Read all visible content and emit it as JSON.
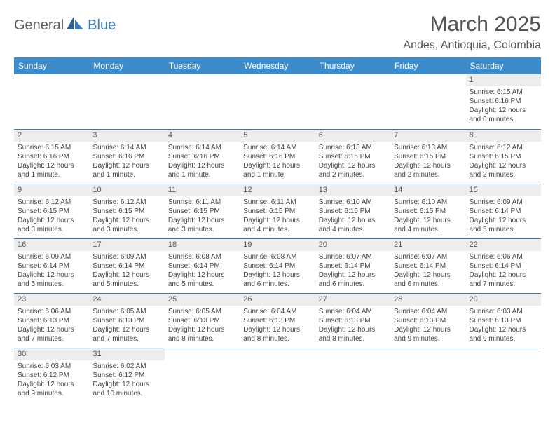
{
  "logo": {
    "part1": "General",
    "part2": "Blue"
  },
  "title": "March 2025",
  "location": "Andes, Antioquia, Colombia",
  "weekdays": [
    "Sunday",
    "Monday",
    "Tuesday",
    "Wednesday",
    "Thursday",
    "Friday",
    "Saturday"
  ],
  "colors": {
    "header_bg": "#3c8ccb",
    "header_text": "#ffffff",
    "daynum_bg": "#eceded",
    "rule": "#3c78aa",
    "logo_blue": "#3a7cc4",
    "text": "#555555"
  },
  "layout": {
    "first_day_column": 6,
    "days_in_month": 31
  },
  "days": {
    "1": {
      "sunrise": "6:15 AM",
      "sunset": "6:16 PM",
      "daylight": "12 hours and 0 minutes."
    },
    "2": {
      "sunrise": "6:15 AM",
      "sunset": "6:16 PM",
      "daylight": "12 hours and 1 minute."
    },
    "3": {
      "sunrise": "6:14 AM",
      "sunset": "6:16 PM",
      "daylight": "12 hours and 1 minute."
    },
    "4": {
      "sunrise": "6:14 AM",
      "sunset": "6:16 PM",
      "daylight": "12 hours and 1 minute."
    },
    "5": {
      "sunrise": "6:14 AM",
      "sunset": "6:16 PM",
      "daylight": "12 hours and 1 minute."
    },
    "6": {
      "sunrise": "6:13 AM",
      "sunset": "6:15 PM",
      "daylight": "12 hours and 2 minutes."
    },
    "7": {
      "sunrise": "6:13 AM",
      "sunset": "6:15 PM",
      "daylight": "12 hours and 2 minutes."
    },
    "8": {
      "sunrise": "6:12 AM",
      "sunset": "6:15 PM",
      "daylight": "12 hours and 2 minutes."
    },
    "9": {
      "sunrise": "6:12 AM",
      "sunset": "6:15 PM",
      "daylight": "12 hours and 3 minutes."
    },
    "10": {
      "sunrise": "6:12 AM",
      "sunset": "6:15 PM",
      "daylight": "12 hours and 3 minutes."
    },
    "11": {
      "sunrise": "6:11 AM",
      "sunset": "6:15 PM",
      "daylight": "12 hours and 3 minutes."
    },
    "12": {
      "sunrise": "6:11 AM",
      "sunset": "6:15 PM",
      "daylight": "12 hours and 4 minutes."
    },
    "13": {
      "sunrise": "6:10 AM",
      "sunset": "6:15 PM",
      "daylight": "12 hours and 4 minutes."
    },
    "14": {
      "sunrise": "6:10 AM",
      "sunset": "6:15 PM",
      "daylight": "12 hours and 4 minutes."
    },
    "15": {
      "sunrise": "6:09 AM",
      "sunset": "6:14 PM",
      "daylight": "12 hours and 5 minutes."
    },
    "16": {
      "sunrise": "6:09 AM",
      "sunset": "6:14 PM",
      "daylight": "12 hours and 5 minutes."
    },
    "17": {
      "sunrise": "6:09 AM",
      "sunset": "6:14 PM",
      "daylight": "12 hours and 5 minutes."
    },
    "18": {
      "sunrise": "6:08 AM",
      "sunset": "6:14 PM",
      "daylight": "12 hours and 5 minutes."
    },
    "19": {
      "sunrise": "6:08 AM",
      "sunset": "6:14 PM",
      "daylight": "12 hours and 6 minutes."
    },
    "20": {
      "sunrise": "6:07 AM",
      "sunset": "6:14 PM",
      "daylight": "12 hours and 6 minutes."
    },
    "21": {
      "sunrise": "6:07 AM",
      "sunset": "6:14 PM",
      "daylight": "12 hours and 6 minutes."
    },
    "22": {
      "sunrise": "6:06 AM",
      "sunset": "6:14 PM",
      "daylight": "12 hours and 7 minutes."
    },
    "23": {
      "sunrise": "6:06 AM",
      "sunset": "6:13 PM",
      "daylight": "12 hours and 7 minutes."
    },
    "24": {
      "sunrise": "6:05 AM",
      "sunset": "6:13 PM",
      "daylight": "12 hours and 7 minutes."
    },
    "25": {
      "sunrise": "6:05 AM",
      "sunset": "6:13 PM",
      "daylight": "12 hours and 8 minutes."
    },
    "26": {
      "sunrise": "6:04 AM",
      "sunset": "6:13 PM",
      "daylight": "12 hours and 8 minutes."
    },
    "27": {
      "sunrise": "6:04 AM",
      "sunset": "6:13 PM",
      "daylight": "12 hours and 8 minutes."
    },
    "28": {
      "sunrise": "6:04 AM",
      "sunset": "6:13 PM",
      "daylight": "12 hours and 9 minutes."
    },
    "29": {
      "sunrise": "6:03 AM",
      "sunset": "6:13 PM",
      "daylight": "12 hours and 9 minutes."
    },
    "30": {
      "sunrise": "6:03 AM",
      "sunset": "6:12 PM",
      "daylight": "12 hours and 9 minutes."
    },
    "31": {
      "sunrise": "6:02 AM",
      "sunset": "6:12 PM",
      "daylight": "12 hours and 10 minutes."
    }
  },
  "labels": {
    "sunrise": "Sunrise: ",
    "sunset": "Sunset: ",
    "daylight": "Daylight: "
  }
}
